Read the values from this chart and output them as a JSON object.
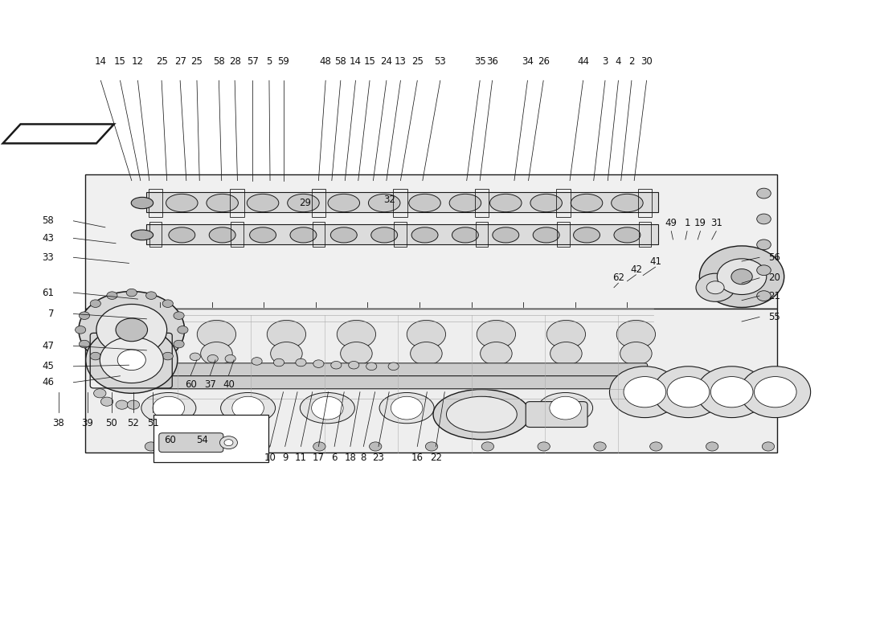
{
  "bg_color": "#ffffff",
  "line_color": "#1a1a1a",
  "text_color": "#111111",
  "font_size": 8.5,
  "watermark_color": "#c8c8c8",
  "watermark_alpha": 0.3,
  "top_labels": [
    {
      "text": "14",
      "xf": 0.113,
      "xt": 0.148,
      "yt": 0.72
    },
    {
      "text": "15",
      "xf": 0.135,
      "xt": 0.158,
      "yt": 0.72
    },
    {
      "text": "12",
      "xf": 0.155,
      "xt": 0.168,
      "yt": 0.72
    },
    {
      "text": "25",
      "xf": 0.182,
      "xt": 0.188,
      "yt": 0.72
    },
    {
      "text": "27",
      "xf": 0.203,
      "xt": 0.21,
      "yt": 0.72
    },
    {
      "text": "25",
      "xf": 0.222,
      "xt": 0.225,
      "yt": 0.72
    },
    {
      "text": "58",
      "xf": 0.247,
      "xt": 0.25,
      "yt": 0.72
    },
    {
      "text": "28",
      "xf": 0.265,
      "xt": 0.268,
      "yt": 0.72
    },
    {
      "text": "57",
      "xf": 0.285,
      "xt": 0.285,
      "yt": 0.72
    },
    {
      "text": "5",
      "xf": 0.304,
      "xt": 0.305,
      "yt": 0.72
    },
    {
      "text": "59",
      "xf": 0.32,
      "xt": 0.32,
      "yt": 0.72
    },
    {
      "text": "48",
      "xf": 0.368,
      "xt": 0.36,
      "yt": 0.72
    },
    {
      "text": "58",
      "xf": 0.385,
      "xt": 0.375,
      "yt": 0.72
    },
    {
      "text": "14",
      "xf": 0.402,
      "xt": 0.39,
      "yt": 0.72
    },
    {
      "text": "15",
      "xf": 0.418,
      "xt": 0.405,
      "yt": 0.72
    },
    {
      "text": "24",
      "xf": 0.437,
      "xt": 0.422,
      "yt": 0.72
    },
    {
      "text": "13",
      "xf": 0.453,
      "xt": 0.437,
      "yt": 0.72
    },
    {
      "text": "25",
      "xf": 0.472,
      "xt": 0.453,
      "yt": 0.72
    },
    {
      "text": "53",
      "xf": 0.498,
      "xt": 0.478,
      "yt": 0.72
    },
    {
      "text": "35",
      "xf": 0.543,
      "xt": 0.528,
      "yt": 0.72
    },
    {
      "text": "36",
      "xf": 0.557,
      "xt": 0.543,
      "yt": 0.72
    },
    {
      "text": "34",
      "xf": 0.597,
      "xt": 0.582,
      "yt": 0.72
    },
    {
      "text": "26",
      "xf": 0.615,
      "xt": 0.598,
      "yt": 0.72
    },
    {
      "text": "44",
      "xf": 0.66,
      "xt": 0.645,
      "yt": 0.72
    },
    {
      "text": "3",
      "xf": 0.685,
      "xt": 0.672,
      "yt": 0.72
    },
    {
      "text": "4",
      "xf": 0.7,
      "xt": 0.688,
      "yt": 0.72
    },
    {
      "text": "2",
      "xf": 0.715,
      "xt": 0.703,
      "yt": 0.72
    },
    {
      "text": "30",
      "xf": 0.732,
      "xt": 0.718,
      "yt": 0.72
    }
  ],
  "left_labels": [
    {
      "text": "58",
      "xf": 0.06,
      "yf": 0.657,
      "xt": 0.118,
      "yt": 0.647
    },
    {
      "text": "43",
      "xf": 0.06,
      "yf": 0.63,
      "xt": 0.13,
      "yt": 0.622
    },
    {
      "text": "33",
      "xf": 0.06,
      "yf": 0.6,
      "xt": 0.145,
      "yt": 0.591
    },
    {
      "text": "61",
      "xf": 0.06,
      "yf": 0.545,
      "xt": 0.155,
      "yt": 0.535
    },
    {
      "text": "7",
      "xf": 0.06,
      "yf": 0.512,
      "xt": 0.165,
      "yt": 0.504
    },
    {
      "text": "47",
      "xf": 0.06,
      "yf": 0.462,
      "xt": 0.165,
      "yt": 0.455
    },
    {
      "text": "45",
      "xf": 0.06,
      "yf": 0.43,
      "xt": 0.145,
      "yt": 0.432
    },
    {
      "text": "46",
      "xf": 0.06,
      "yf": 0.405,
      "xt": 0.135,
      "yt": 0.415
    }
  ],
  "bottom_row_labels": [
    {
      "text": "38",
      "xf": 0.065,
      "yf": 0.35
    },
    {
      "text": "39",
      "xf": 0.098,
      "yf": 0.35
    },
    {
      "text": "50",
      "xf": 0.125,
      "yf": 0.35
    },
    {
      "text": "52",
      "xf": 0.15,
      "yf": 0.35
    },
    {
      "text": "51",
      "xf": 0.172,
      "yf": 0.35
    }
  ],
  "mid_bottom_labels": [
    {
      "text": "60",
      "xf": 0.215,
      "yf": 0.41,
      "xt": 0.222,
      "yt": 0.44
    },
    {
      "text": "37",
      "xf": 0.237,
      "yf": 0.41,
      "xt": 0.243,
      "yt": 0.44
    },
    {
      "text": "40",
      "xf": 0.258,
      "yf": 0.41,
      "xt": 0.264,
      "yt": 0.44
    }
  ],
  "bottom_labels": [
    {
      "text": "10",
      "xf": 0.305,
      "yf": 0.295,
      "xt": 0.32,
      "yt": 0.39
    },
    {
      "text": "9",
      "xf": 0.322,
      "yf": 0.295,
      "xt": 0.336,
      "yt": 0.39
    },
    {
      "text": "11",
      "xf": 0.34,
      "yf": 0.295,
      "xt": 0.353,
      "yt": 0.39
    },
    {
      "text": "17",
      "xf": 0.36,
      "yf": 0.295,
      "xt": 0.371,
      "yt": 0.39
    },
    {
      "text": "6",
      "xf": 0.378,
      "yf": 0.295,
      "xt": 0.389,
      "yt": 0.39
    },
    {
      "text": "18",
      "xf": 0.396,
      "yf": 0.295,
      "xt": 0.407,
      "yt": 0.39
    },
    {
      "text": "8",
      "xf": 0.411,
      "yf": 0.295,
      "xt": 0.424,
      "yt": 0.39
    },
    {
      "text": "23",
      "xf": 0.428,
      "yf": 0.295,
      "xt": 0.44,
      "yt": 0.39
    },
    {
      "text": "16",
      "xf": 0.472,
      "yf": 0.295,
      "xt": 0.483,
      "yt": 0.39
    },
    {
      "text": "22",
      "xf": 0.493,
      "yf": 0.295,
      "xt": 0.503,
      "yt": 0.39
    }
  ],
  "right_top_labels": [
    {
      "text": "49",
      "xf": 0.76,
      "yf": 0.645,
      "xt": 0.762,
      "yt": 0.628
    },
    {
      "text": "1",
      "xf": 0.778,
      "yf": 0.645,
      "xt": 0.776,
      "yt": 0.628
    },
    {
      "text": "19",
      "xf": 0.793,
      "yf": 0.645,
      "xt": 0.79,
      "yt": 0.628
    },
    {
      "text": "31",
      "xf": 0.811,
      "yf": 0.645,
      "xt": 0.806,
      "yt": 0.628
    }
  ],
  "right_edge_labels": [
    {
      "text": "56",
      "xf": 0.87,
      "yf": 0.6,
      "xt": 0.84,
      "yt": 0.594
    },
    {
      "text": "20",
      "xf": 0.87,
      "yf": 0.568,
      "xt": 0.84,
      "yt": 0.56
    },
    {
      "text": "21",
      "xf": 0.87,
      "yf": 0.54,
      "xt": 0.84,
      "yt": 0.533
    },
    {
      "text": "55",
      "xf": 0.87,
      "yf": 0.507,
      "xt": 0.84,
      "yt": 0.5
    }
  ],
  "mid_right_labels": [
    {
      "text": "41",
      "xf": 0.742,
      "yf": 0.585,
      "xt": 0.728,
      "yt": 0.572
    },
    {
      "text": "42",
      "xf": 0.72,
      "yf": 0.573,
      "xt": 0.71,
      "yt": 0.563
    },
    {
      "text": "62",
      "xf": 0.7,
      "yf": 0.56,
      "xt": 0.695,
      "yt": 0.553
    }
  ],
  "floating_labels": [
    {
      "text": "29",
      "xf": 0.345,
      "yf": 0.677
    },
    {
      "text": "32",
      "xf": 0.44,
      "yf": 0.682
    }
  ],
  "inset_labels": [
    {
      "text": "60",
      "xf": 0.192,
      "yf": 0.323
    },
    {
      "text": "54",
      "xf": 0.228,
      "yf": 0.323
    }
  ]
}
